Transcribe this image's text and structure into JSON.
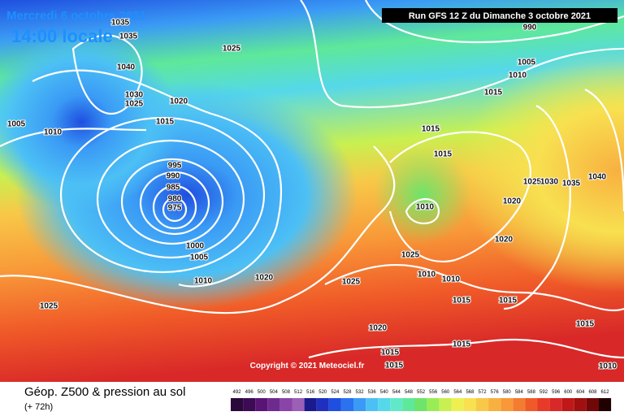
{
  "header": {
    "date": "Mercredi 6 octobre 2021",
    "time": "14:00 locale",
    "run": "Run GFS 12 Z du Dimanche 3 octobre 2021",
    "copyright": "Copyright © 2021 Meteociel.fr"
  },
  "legend": {
    "title": "Géop. Z500 & pression au sol",
    "subtitle": "(+ 72h)",
    "scale": [
      492,
      496,
      500,
      504,
      508,
      512,
      516,
      520,
      524,
      528,
      532,
      536,
      540,
      544,
      548,
      552,
      556,
      560,
      564,
      568,
      572,
      576,
      580,
      584,
      588,
      592,
      596,
      600,
      604,
      608,
      612
    ],
    "colors": [
      "#2a0a3a",
      "#3d0b55",
      "#5a1475",
      "#6f2a8f",
      "#8a44a8",
      "#9b5fb8",
      "#1a1a8c",
      "#1f2fbf",
      "#1f4fe0",
      "#2a72f0",
      "#3a9af5",
      "#4cc0f5",
      "#55d8ea",
      "#60e8c8",
      "#5ee89a",
      "#6ee46a",
      "#9aec55",
      "#c8f050",
      "#eef050",
      "#f8e050",
      "#f8c848",
      "#f8b040",
      "#f89838",
      "#f47c30",
      "#f05a28",
      "#e83a28",
      "#d82828",
      "#c01818",
      "#a01010",
      "#700808",
      "#200000"
    ]
  },
  "pressure_labels": [
    1035,
    1035,
    1040,
    1030,
    1025,
    1025,
    1020,
    1015,
    1010,
    1005,
    995,
    990,
    985,
    980,
    975,
    1000,
    1005,
    1010,
    1020,
    1025,
    1025,
    1020,
    1015,
    1015,
    990,
    1005,
    1010,
    1015,
    1015,
    1015,
    1010,
    1020,
    1025,
    1030,
    1035,
    1040,
    1020,
    1025,
    1010,
    1010,
    1015,
    1015,
    1015,
    1015,
    1010
  ]
}
